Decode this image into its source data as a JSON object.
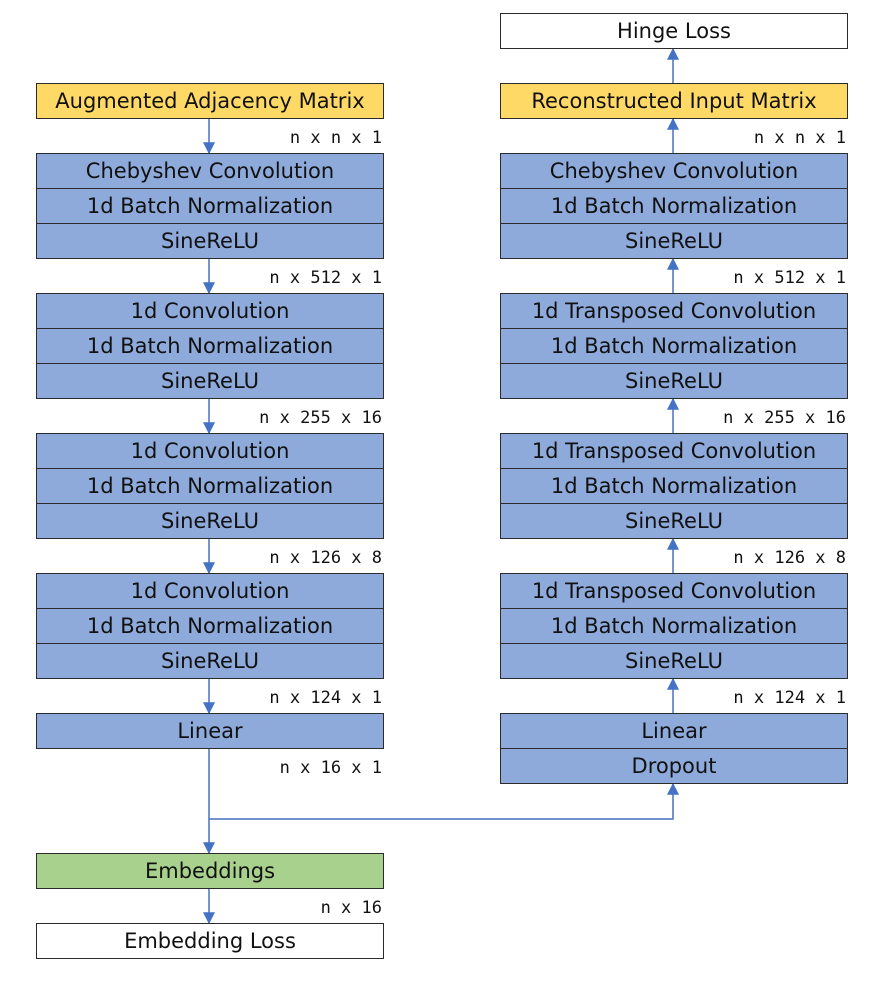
{
  "colors": {
    "layer": "#8eaadb",
    "io": "#ffd966",
    "embedding": "#a9d18e",
    "loss": "#ffffff",
    "wire": "#4472c4"
  },
  "encoder": {
    "input": "Augmented Adjacency Matrix",
    "blocks": [
      {
        "layers": [
          "Chebyshev Convolution",
          "1d Batch Normalization",
          "SineReLU"
        ],
        "in_dim": "n x n x 1",
        "out_dim": "n x 512 x 1"
      },
      {
        "layers": [
          "1d Convolution",
          "1d Batch Normalization",
          "SineReLU"
        ],
        "out_dim": "n x 255 x 16"
      },
      {
        "layers": [
          "1d Convolution",
          "1d Batch Normalization",
          "SineReLU"
        ],
        "out_dim": "n x 126 x 8"
      },
      {
        "layers": [
          "1d Convolution",
          "1d Batch Normalization",
          "SineReLU"
        ],
        "out_dim": "n x 124 x 1"
      },
      {
        "layers": [
          "Linear"
        ],
        "out_dim": "n x 16 x 1"
      }
    ]
  },
  "embeddings": {
    "label": "Embeddings",
    "dim": "n x 16"
  },
  "embedding_loss": "Embedding Loss",
  "decoder": {
    "loss": "Hinge Loss",
    "output": "Reconstructed Input Matrix",
    "blocks": [
      {
        "layers": [
          "Chebyshev Convolution",
          "1d Batch Normalization",
          "SineReLU"
        ],
        "out_dim": "n x n x 1"
      },
      {
        "layers": [
          "1d Transposed Convolution",
          "1d Batch Normalization",
          "SineReLU"
        ],
        "out_dim": "n x 512 x 1"
      },
      {
        "layers": [
          "1d Transposed Convolution",
          "1d Batch Normalization",
          "SineReLU"
        ],
        "out_dim": "n x 255 x 16"
      },
      {
        "layers": [
          "1d Transposed Convolution",
          "1d Batch Normalization",
          "SineReLU"
        ],
        "out_dim": "n x 126 x 8"
      },
      {
        "layers": [
          "Linear",
          "Dropout"
        ],
        "out_dim": "n x 124 x 1"
      }
    ]
  }
}
